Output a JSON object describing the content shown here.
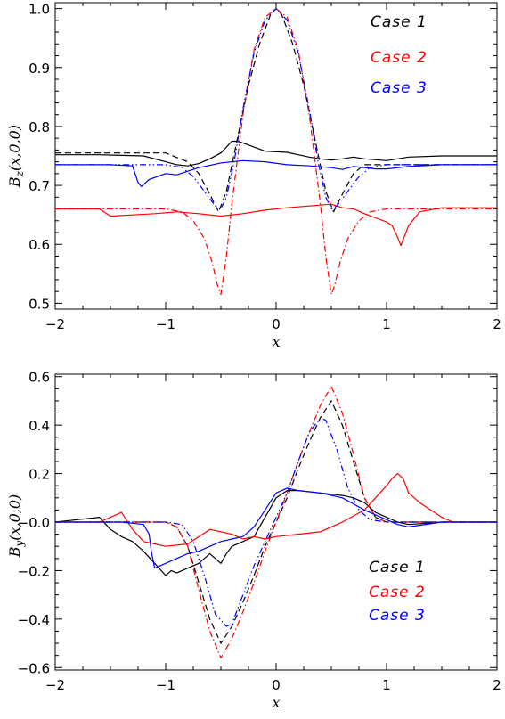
{
  "chart_data": [
    {
      "type": "line",
      "xlabel": "x",
      "ylabel": "B_z(x,0,0)",
      "xlim": [
        -2,
        2
      ],
      "ylim": [
        0.49,
        1.01
      ],
      "xticks": [
        "−2",
        "−1",
        "0",
        "1",
        "2"
      ],
      "xtick_values": [
        -2,
        -1,
        0,
        1,
        2
      ],
      "yticks": [
        "0.5",
        "0.6",
        "0.7",
        "0.8",
        "0.9",
        "1.0"
      ],
      "ytick_values": [
        0.5,
        0.6,
        0.7,
        0.8,
        0.9,
        1.0
      ],
      "legend": [
        {
          "label": "Case 1",
          "color": "#000000"
        },
        {
          "label": "Case 2",
          "color": "#ff0000"
        },
        {
          "label": "Case 3",
          "color": "#0000ff"
        }
      ],
      "legend_position": "top-right",
      "series": [
        {
          "case": 1,
          "style": "solid",
          "color": "#000000",
          "x": [
            -2,
            -1.6,
            -1.2,
            -1.0,
            -0.9,
            -0.8,
            -0.7,
            -0.6,
            -0.5,
            -0.45,
            -0.4,
            -0.35,
            -0.3,
            -0.2,
            -0.1,
            0,
            0.1,
            0.2,
            0.3,
            0.4,
            0.5,
            0.6,
            0.7,
            0.8,
            1.0,
            1.2,
            1.5,
            2
          ],
          "y": [
            0.752,
            0.752,
            0.75,
            0.74,
            0.735,
            0.733,
            0.737,
            0.745,
            0.755,
            0.765,
            0.775,
            0.775,
            0.772,
            0.765,
            0.758,
            0.757,
            0.756,
            0.752,
            0.748,
            0.745,
            0.743,
            0.745,
            0.748,
            0.745,
            0.742,
            0.748,
            0.75,
            0.75
          ]
        },
        {
          "case": 1,
          "style": "dashed",
          "color": "#000000",
          "x": [
            -2,
            -1.0,
            -0.8,
            -0.7,
            -0.6,
            -0.52,
            -0.45,
            -0.35,
            -0.25,
            -0.15,
            -0.05,
            0,
            0.05,
            0.15,
            0.25,
            0.35,
            0.45,
            0.52,
            0.6,
            0.7,
            0.8,
            1.0,
            2
          ],
          "y": [
            0.755,
            0.755,
            0.74,
            0.72,
            0.685,
            0.655,
            0.69,
            0.78,
            0.87,
            0.94,
            0.99,
            1.0,
            0.99,
            0.94,
            0.87,
            0.78,
            0.69,
            0.655,
            0.685,
            0.72,
            0.735,
            0.735,
            0.735
          ]
        },
        {
          "case": 2,
          "style": "solid",
          "color": "#ff0000",
          "x": [
            -2,
            -1.6,
            -1.5,
            -1.3,
            -1.1,
            -0.9,
            -0.7,
            -0.5,
            -0.3,
            -0.1,
            0.1,
            0.3,
            0.5,
            0.6,
            0.7,
            0.8,
            0.9,
            1.0,
            1.05,
            1.1,
            1.13,
            1.2,
            1.3,
            1.5,
            2
          ],
          "y": [
            0.66,
            0.66,
            0.648,
            0.65,
            0.652,
            0.655,
            0.652,
            0.648,
            0.652,
            0.658,
            0.662,
            0.665,
            0.668,
            0.662,
            0.66,
            0.652,
            0.645,
            0.638,
            0.632,
            0.612,
            0.598,
            0.632,
            0.655,
            0.662,
            0.662
          ]
        },
        {
          "case": 2,
          "style": "dashdot",
          "color": "#ff0000",
          "x": [
            -2,
            -1.0,
            -0.85,
            -0.75,
            -0.65,
            -0.58,
            -0.53,
            -0.5,
            -0.45,
            -0.4,
            -0.3,
            -0.2,
            -0.1,
            0,
            0.1,
            0.2,
            0.3,
            0.4,
            0.45,
            0.5,
            0.53,
            0.58,
            0.65,
            0.75,
            0.85,
            1.0,
            2
          ],
          "y": [
            0.66,
            0.66,
            0.655,
            0.64,
            0.61,
            0.57,
            0.53,
            0.515,
            0.58,
            0.67,
            0.82,
            0.93,
            0.985,
            1.0,
            0.985,
            0.93,
            0.82,
            0.67,
            0.58,
            0.515,
            0.53,
            0.57,
            0.61,
            0.64,
            0.655,
            0.66,
            0.66
          ]
        },
        {
          "case": 3,
          "style": "solid",
          "color": "#0000ff",
          "x": [
            -2,
            -1.5,
            -1.3,
            -1.25,
            -1.22,
            -1.15,
            -1.0,
            -0.9,
            -0.7,
            -0.5,
            -0.3,
            -0.1,
            0.1,
            0.3,
            0.5,
            0.6,
            0.7,
            0.8,
            0.9,
            1.0,
            1.2,
            1.5,
            2
          ],
          "y": [
            0.735,
            0.735,
            0.733,
            0.705,
            0.698,
            0.71,
            0.72,
            0.718,
            0.73,
            0.738,
            0.742,
            0.74,
            0.735,
            0.733,
            0.73,
            0.727,
            0.732,
            0.73,
            0.728,
            0.728,
            0.732,
            0.735,
            0.735
          ]
        },
        {
          "case": 3,
          "style": "dashdotdot",
          "color": "#0000ff",
          "x": [
            -2,
            -1.0,
            -0.85,
            -0.75,
            -0.65,
            -0.55,
            -0.5,
            -0.45,
            -0.38,
            -0.3,
            -0.2,
            -0.1,
            0,
            0.1,
            0.2,
            0.3,
            0.38,
            0.45,
            0.5,
            0.55,
            0.65,
            0.75,
            0.85,
            1.0,
            2
          ],
          "y": [
            0.735,
            0.735,
            0.73,
            0.715,
            0.69,
            0.665,
            0.66,
            0.68,
            0.74,
            0.83,
            0.925,
            0.98,
            1.0,
            0.98,
            0.925,
            0.83,
            0.74,
            0.68,
            0.66,
            0.665,
            0.69,
            0.715,
            0.73,
            0.735,
            0.735
          ]
        }
      ]
    },
    {
      "type": "line",
      "xlabel": "x",
      "ylabel": "B_y(x,0,0)",
      "xlim": [
        -2,
        2
      ],
      "ylim": [
        -0.61,
        0.61
      ],
      "xticks": [
        "−2",
        "−1",
        "0",
        "1",
        "2"
      ],
      "xtick_values": [
        -2,
        -1,
        0,
        1,
        2
      ],
      "yticks": [
        "−0.6",
        "−0.4",
        "−0.2",
        "−0.0",
        "0.2",
        "0.4",
        "0.6"
      ],
      "ytick_values": [
        -0.6,
        -0.4,
        -0.2,
        0.0,
        0.2,
        0.4,
        0.6
      ],
      "legend": [
        {
          "label": "Case 1",
          "color": "#000000"
        },
        {
          "label": "Case 2",
          "color": "#ff0000"
        },
        {
          "label": "Case 3",
          "color": "#0000ff"
        }
      ],
      "legend_position": "bottom-right",
      "series": [
        {
          "case": 1,
          "style": "solid",
          "color": "#000000",
          "x": [
            -2,
            -1.8,
            -1.6,
            -1.5,
            -1.4,
            -1.3,
            -1.2,
            -1.1,
            -1.0,
            -0.95,
            -0.9,
            -0.8,
            -0.7,
            -0.6,
            -0.5,
            -0.45,
            -0.4,
            -0.3,
            -0.2,
            -0.1,
            0,
            0.1,
            0.2,
            0.4,
            0.6,
            0.7,
            0.8,
            0.9,
            1.0,
            1.1,
            1.2,
            1.5,
            2
          ],
          "y": [
            0.0,
            0.01,
            0.02,
            -0.03,
            -0.06,
            -0.08,
            -0.12,
            -0.17,
            -0.22,
            -0.2,
            -0.21,
            -0.19,
            -0.17,
            -0.13,
            -0.17,
            -0.13,
            -0.1,
            -0.08,
            -0.06,
            0.02,
            0.1,
            0.13,
            0.13,
            0.12,
            0.11,
            0.1,
            0.08,
            0.04,
            0.02,
            0.0,
            -0.01,
            0.0,
            0.0
          ]
        },
        {
          "case": 1,
          "style": "dashed",
          "color": "#000000",
          "x": [
            -2,
            -1.0,
            -0.9,
            -0.8,
            -0.7,
            -0.6,
            -0.5,
            -0.4,
            -0.3,
            -0.2,
            -0.1,
            0,
            0.1,
            0.2,
            0.3,
            0.4,
            0.5,
            0.6,
            0.7,
            0.8,
            0.9,
            1.0,
            2
          ],
          "y": [
            0.0,
            0.0,
            -0.02,
            -0.1,
            -0.25,
            -0.4,
            -0.5,
            -0.43,
            -0.33,
            -0.22,
            -0.1,
            0.0,
            0.1,
            0.22,
            0.33,
            0.43,
            0.5,
            0.4,
            0.25,
            0.1,
            0.02,
            0.0,
            0.0
          ]
        },
        {
          "case": 2,
          "style": "solid",
          "color": "#ff0000",
          "x": [
            -2,
            -1.6,
            -1.5,
            -1.4,
            -1.3,
            -1.2,
            -1.0,
            -0.8,
            -0.6,
            -0.4,
            -0.3,
            -0.2,
            -0.1,
            0,
            0.2,
            0.4,
            0.6,
            0.8,
            0.9,
            1.0,
            1.05,
            1.1,
            1.15,
            1.2,
            1.3,
            1.4,
            1.5,
            1.6,
            2
          ],
          "y": [
            0.0,
            0.0,
            0.02,
            0.04,
            -0.03,
            -0.08,
            -0.1,
            -0.09,
            -0.03,
            -0.05,
            -0.07,
            -0.06,
            -0.07,
            -0.06,
            -0.05,
            -0.04,
            0.0,
            0.05,
            0.1,
            0.15,
            0.18,
            0.2,
            0.18,
            0.12,
            0.08,
            0.05,
            0.02,
            0.0,
            0.0
          ]
        },
        {
          "case": 2,
          "style": "dashdot",
          "color": "#ff0000",
          "x": [
            -2,
            -1.0,
            -0.9,
            -0.8,
            -0.7,
            -0.6,
            -0.5,
            -0.4,
            -0.3,
            -0.2,
            -0.1,
            0,
            0.1,
            0.2,
            0.3,
            0.4,
            0.5,
            0.6,
            0.7,
            0.8,
            0.9,
            1.0,
            2
          ],
          "y": [
            0.0,
            0.0,
            -0.02,
            -0.1,
            -0.28,
            -0.45,
            -0.56,
            -0.48,
            -0.37,
            -0.25,
            -0.12,
            0.0,
            0.12,
            0.25,
            0.37,
            0.48,
            0.56,
            0.45,
            0.28,
            0.1,
            0.02,
            0.0,
            0.0
          ]
        },
        {
          "case": 3,
          "style": "solid",
          "color": "#0000ff",
          "x": [
            -2,
            -1.4,
            -1.2,
            -1.15,
            -1.13,
            -1.1,
            -1.0,
            -0.9,
            -0.8,
            -0.7,
            -0.6,
            -0.5,
            -0.4,
            -0.3,
            -0.2,
            -0.1,
            0,
            0.1,
            0.2,
            0.4,
            0.6,
            0.8,
            1.0,
            1.1,
            1.2,
            1.5,
            2
          ],
          "y": [
            0.0,
            0.0,
            -0.01,
            -0.05,
            -0.12,
            -0.19,
            -0.17,
            -0.15,
            -0.13,
            -0.12,
            -0.1,
            -0.08,
            -0.07,
            -0.06,
            -0.02,
            0.05,
            0.12,
            0.14,
            0.13,
            0.12,
            0.1,
            0.05,
            0.01,
            -0.01,
            -0.02,
            0.0,
            0.0
          ]
        },
        {
          "case": 3,
          "style": "dashdotdot",
          "color": "#0000ff",
          "x": [
            -2,
            -1.0,
            -0.85,
            -0.75,
            -0.65,
            -0.55,
            -0.45,
            -0.4,
            -0.3,
            -0.2,
            -0.1,
            0,
            0.1,
            0.2,
            0.3,
            0.4,
            0.45,
            0.55,
            0.65,
            0.75,
            0.85,
            1.0,
            2
          ],
          "y": [
            0.0,
            0.0,
            -0.01,
            -0.08,
            -0.22,
            -0.38,
            -0.43,
            -0.42,
            -0.3,
            -0.18,
            -0.08,
            0.02,
            0.12,
            0.25,
            0.37,
            0.43,
            0.42,
            0.3,
            0.14,
            0.05,
            0.01,
            0.0,
            0.0
          ]
        }
      ]
    }
  ]
}
